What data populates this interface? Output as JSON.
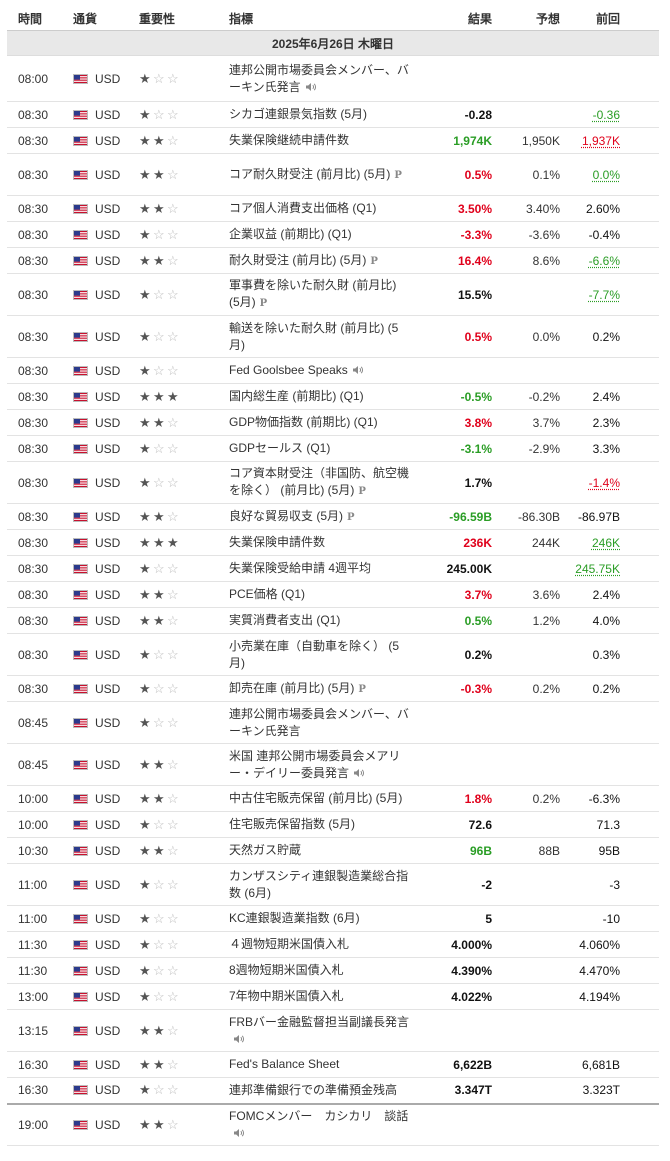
{
  "headers": {
    "time": "時間",
    "currency": "通貨",
    "importance": "重要性",
    "indicator": "指標",
    "actual": "結果",
    "forecast": "予想",
    "previous": "前回"
  },
  "date_label": "2025年6月26日 木曜日",
  "colors": {
    "green": "#2a9d25",
    "red": "#e0001b"
  },
  "events": [
    {
      "time": "08:00",
      "cur": "USD",
      "stars": 1,
      "name": "連邦公開市場委員会メンバー、バーキン氏発言",
      "icon": "speaker-icon",
      "actual": "",
      "actual_color": "",
      "forecast": "",
      "previous": "",
      "prev_color": ""
    },
    {
      "time": "08:30",
      "cur": "USD",
      "stars": 1,
      "name": "シカゴ連銀景気指数 (5月)",
      "icon": "",
      "actual": "-0.28",
      "actual_color": "black",
      "forecast": "",
      "previous": "-0.36",
      "prev_color": "green"
    },
    {
      "time": "08:30",
      "cur": "USD",
      "stars": 2,
      "name": "失業保険継続申請件数",
      "icon": "",
      "actual": "1,974K",
      "actual_color": "green",
      "forecast": "1,950K",
      "previous": "1,937K",
      "prev_color": "red"
    },
    {
      "time": "08:30",
      "cur": "USD",
      "stars": 2,
      "name": "コア耐久財受注 (前月比) (5月)",
      "icon": "preliminary-icon",
      "actual": "0.5%",
      "actual_color": "red",
      "forecast": "0.1%",
      "previous": "0.0%",
      "prev_color": "green"
    },
    {
      "time": "08:30",
      "cur": "USD",
      "stars": 2,
      "name": "コア個人消費支出価格 (Q1)",
      "icon": "",
      "actual": "3.50%",
      "actual_color": "red",
      "forecast": "3.40%",
      "previous": "2.60%",
      "prev_color": ""
    },
    {
      "time": "08:30",
      "cur": "USD",
      "stars": 1,
      "name": "企業収益 (前期比) (Q1)",
      "icon": "",
      "actual": "-3.3%",
      "actual_color": "red",
      "forecast": "-3.6%",
      "previous": "-0.4%",
      "prev_color": ""
    },
    {
      "time": "08:30",
      "cur": "USD",
      "stars": 2,
      "name": "耐久財受注 (前月比) (5月)",
      "icon": "preliminary-icon",
      "actual": "16.4%",
      "actual_color": "red",
      "forecast": "8.6%",
      "previous": "-6.6%",
      "prev_color": "green"
    },
    {
      "time": "08:30",
      "cur": "USD",
      "stars": 1,
      "name": "軍事費を除いた耐久財 (前月比) (5月)",
      "icon": "preliminary-icon",
      "actual": "15.5%",
      "actual_color": "black",
      "forecast": "",
      "previous": "-7.7%",
      "prev_color": "green"
    },
    {
      "time": "08:30",
      "cur": "USD",
      "stars": 1,
      "name": "輸送を除いた耐久財 (前月比) (5月)",
      "icon": "",
      "actual": "0.5%",
      "actual_color": "red",
      "forecast": "0.0%",
      "previous": "0.2%",
      "prev_color": ""
    },
    {
      "time": "08:30",
      "cur": "USD",
      "stars": 1,
      "name": "Fed Goolsbee Speaks",
      "icon": "speaker-icon",
      "actual": "",
      "actual_color": "",
      "forecast": "",
      "previous": "",
      "prev_color": ""
    },
    {
      "time": "08:30",
      "cur": "USD",
      "stars": 3,
      "name": "国内総生産 (前期比) (Q1)",
      "icon": "",
      "actual": "-0.5%",
      "actual_color": "green",
      "forecast": "-0.2%",
      "previous": "2.4%",
      "prev_color": ""
    },
    {
      "time": "08:30",
      "cur": "USD",
      "stars": 2,
      "name": "GDP物価指数 (前期比) (Q1)",
      "icon": "",
      "actual": "3.8%",
      "actual_color": "red",
      "forecast": "3.7%",
      "previous": "2.3%",
      "prev_color": ""
    },
    {
      "time": "08:30",
      "cur": "USD",
      "stars": 1,
      "name": "GDPセールス (Q1)",
      "icon": "",
      "actual": "-3.1%",
      "actual_color": "green",
      "forecast": "-2.9%",
      "previous": "3.3%",
      "prev_color": ""
    },
    {
      "time": "08:30",
      "cur": "USD",
      "stars": 1,
      "name": "コア資本財受注（非国防、航空機を除く） (前月比) (5月)",
      "icon": "preliminary-icon",
      "actual": "1.7%",
      "actual_color": "black",
      "forecast": "",
      "previous": "-1.4%",
      "prev_color": "red"
    },
    {
      "time": "08:30",
      "cur": "USD",
      "stars": 2,
      "name": "良好な貿易収支 (5月)",
      "icon": "preliminary-icon",
      "actual": "-96.59B",
      "actual_color": "green",
      "forecast": "-86.30B",
      "previous": "-86.97B",
      "prev_color": ""
    },
    {
      "time": "08:30",
      "cur": "USD",
      "stars": 3,
      "name": "失業保険申請件数",
      "icon": "",
      "actual": "236K",
      "actual_color": "red",
      "forecast": "244K",
      "previous": "246K",
      "prev_color": "green"
    },
    {
      "time": "08:30",
      "cur": "USD",
      "stars": 1,
      "name": "失業保険受給申請 4週平均",
      "icon": "",
      "actual": "245.00K",
      "actual_color": "black",
      "forecast": "",
      "previous": "245.75K",
      "prev_color": "green"
    },
    {
      "time": "08:30",
      "cur": "USD",
      "stars": 2,
      "name": "PCE価格 (Q1)",
      "icon": "",
      "actual": "3.7%",
      "actual_color": "red",
      "forecast": "3.6%",
      "previous": "2.4%",
      "prev_color": ""
    },
    {
      "time": "08:30",
      "cur": "USD",
      "stars": 2,
      "name": "実質消費者支出 (Q1)",
      "icon": "",
      "actual": "0.5%",
      "actual_color": "green",
      "forecast": "1.2%",
      "previous": "4.0%",
      "prev_color": ""
    },
    {
      "time": "08:30",
      "cur": "USD",
      "stars": 1,
      "name": "小売業在庫（自動車を除く） (5月)",
      "icon": "",
      "actual": "0.2%",
      "actual_color": "black",
      "forecast": "",
      "previous": "0.3%",
      "prev_color": ""
    },
    {
      "time": "08:30",
      "cur": "USD",
      "stars": 1,
      "name": "卸売在庫 (前月比) (5月)",
      "icon": "preliminary-icon",
      "actual": "-0.3%",
      "actual_color": "red",
      "forecast": "0.2%",
      "previous": "0.2%",
      "prev_color": ""
    },
    {
      "time": "08:45",
      "cur": "USD",
      "stars": 1,
      "name": "連邦公開市場委員会メンバー、バーキン氏発言",
      "icon": "",
      "actual": "",
      "actual_color": "",
      "forecast": "",
      "previous": "",
      "prev_color": ""
    },
    {
      "time": "08:45",
      "cur": "USD",
      "stars": 2,
      "name": "米国 連邦公開市場委員会メアリー・デイリー委員発言",
      "icon": "speaker-icon",
      "actual": "",
      "actual_color": "",
      "forecast": "",
      "previous": "",
      "prev_color": ""
    },
    {
      "time": "10:00",
      "cur": "USD",
      "stars": 2,
      "name": "中古住宅販売保留 (前月比) (5月)",
      "icon": "",
      "actual": "1.8%",
      "actual_color": "red",
      "forecast": "0.2%",
      "previous": "-6.3%",
      "prev_color": ""
    },
    {
      "time": "10:00",
      "cur": "USD",
      "stars": 1,
      "name": "住宅販売保留指数 (5月)",
      "icon": "",
      "actual": "72.6",
      "actual_color": "black",
      "forecast": "",
      "previous": "71.3",
      "prev_color": ""
    },
    {
      "time": "10:30",
      "cur": "USD",
      "stars": 2,
      "name": "天然ガス貯蔵",
      "icon": "",
      "actual": "96B",
      "actual_color": "green",
      "forecast": "88B",
      "previous": "95B",
      "prev_color": ""
    },
    {
      "time": "11:00",
      "cur": "USD",
      "stars": 1,
      "name": "カンザスシティ連銀製造業総合指数 (6月)",
      "icon": "",
      "actual": "-2",
      "actual_color": "black",
      "forecast": "",
      "previous": "-3",
      "prev_color": ""
    },
    {
      "time": "11:00",
      "cur": "USD",
      "stars": 1,
      "name": "KC連銀製造業指数 (6月)",
      "icon": "",
      "actual": "5",
      "actual_color": "black",
      "forecast": "",
      "previous": "-10",
      "prev_color": ""
    },
    {
      "time": "11:30",
      "cur": "USD",
      "stars": 1,
      "name": "４週物短期米国債入札",
      "icon": "",
      "actual": "4.000%",
      "actual_color": "black",
      "forecast": "",
      "previous": "4.060%",
      "prev_color": ""
    },
    {
      "time": "11:30",
      "cur": "USD",
      "stars": 1,
      "name": "8週物短期米国債入札",
      "icon": "",
      "actual": "4.390%",
      "actual_color": "black",
      "forecast": "",
      "previous": "4.470%",
      "prev_color": ""
    },
    {
      "time": "13:00",
      "cur": "USD",
      "stars": 1,
      "name": "7年物中期米国債入札",
      "icon": "",
      "actual": "4.022%",
      "actual_color": "black",
      "forecast": "",
      "previous": "4.194%",
      "prev_color": ""
    },
    {
      "time": "13:15",
      "cur": "USD",
      "stars": 2,
      "name": "FRBバー金融監督担当副議長発言",
      "icon": "speaker-icon",
      "actual": "",
      "actual_color": "",
      "forecast": "",
      "previous": "",
      "prev_color": ""
    },
    {
      "time": "16:30",
      "cur": "USD",
      "stars": 2,
      "name": "Fed's Balance Sheet",
      "icon": "",
      "actual": "6,622B",
      "actual_color": "black",
      "forecast": "",
      "previous": "6,681B",
      "prev_color": ""
    },
    {
      "time": "16:30",
      "cur": "USD",
      "stars": 1,
      "name": "連邦準備銀行での準備預金残高",
      "icon": "",
      "actual": "3.347T",
      "actual_color": "black",
      "forecast": "",
      "previous": "3.323T",
      "prev_color": ""
    },
    {
      "time": "19:00",
      "cur": "USD",
      "stars": 2,
      "name": "FOMCメンバー　カシカリ　談話",
      "icon": "speaker-icon",
      "actual": "",
      "actual_color": "",
      "forecast": "",
      "previous": "",
      "prev_color": ""
    }
  ]
}
